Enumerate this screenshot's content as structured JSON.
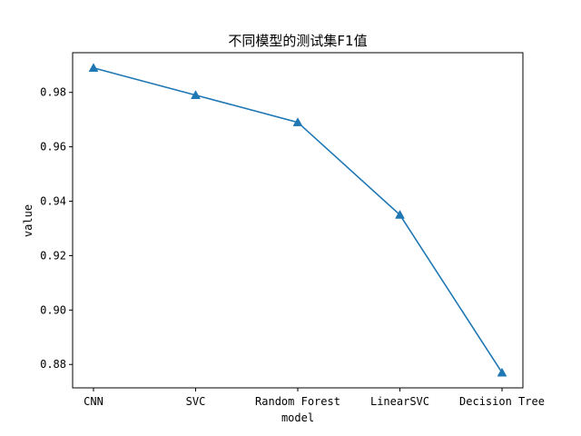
{
  "chart_data": {
    "type": "line",
    "title": "不同模型的测试集F1值",
    "xlabel": "model",
    "ylabel": "value",
    "categories": [
      "CNN",
      "SVC",
      "Random Forest",
      "LinearSVC",
      "Decision Tree"
    ],
    "series": [
      {
        "values": [
          0.989,
          0.979,
          0.969,
          0.935,
          0.877
        ],
        "color": "#1f77b4",
        "marker": "triangle-up"
      }
    ],
    "yticks": [
      0.88,
      0.9,
      0.92,
      0.94,
      0.96,
      0.98
    ],
    "ytick_labels": [
      "0.88",
      "0.90",
      "0.92",
      "0.94",
      "0.96",
      "0.98"
    ],
    "ylim": [
      0.8714,
      0.9946
    ],
    "grid": false,
    "legend": "none"
  }
}
